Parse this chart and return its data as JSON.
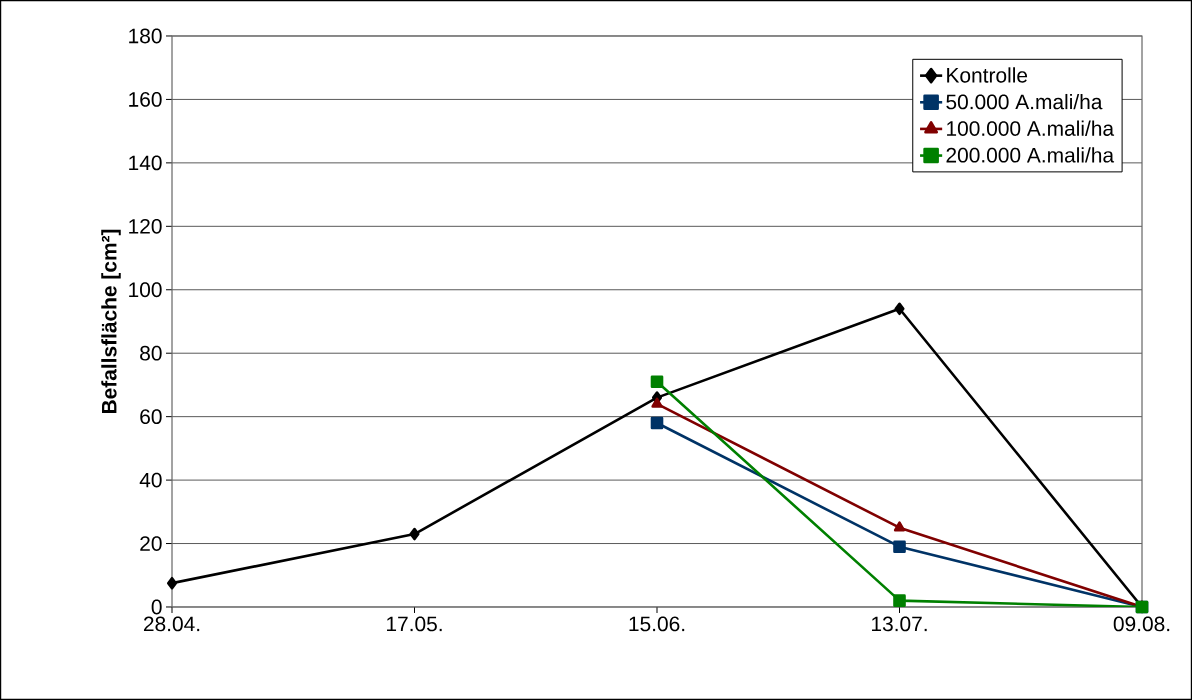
{
  "chart_data": {
    "type": "line",
    "ylabel": "Befallsfläche [cm²]",
    "categories": [
      "28.04.",
      "17.05.",
      "15.06.",
      "13.07.",
      "09.08."
    ],
    "series": [
      {
        "name": "Kontrolle",
        "color": "#000000",
        "marker": "diamond",
        "values": [
          7.5,
          23,
          66,
          94,
          0
        ]
      },
      {
        "name": "50.000 A.mali/ha",
        "color": "#003366",
        "marker": "square",
        "values": [
          null,
          null,
          58,
          19,
          0
        ]
      },
      {
        "name": "100.000 A.mali/ha",
        "color": "#800000",
        "marker": "triangle",
        "values": [
          null,
          null,
          64,
          25,
          0
        ]
      },
      {
        "name": "200.000 A.mali/ha",
        "color": "#008000",
        "marker": "square",
        "values": [
          null,
          null,
          71,
          2,
          0
        ]
      }
    ],
    "ylim": [
      0,
      180
    ],
    "yticks": [
      0,
      20,
      40,
      60,
      80,
      100,
      120,
      140,
      160,
      180
    ],
    "grid": "y",
    "legend": "top right",
    "line_style": "solid"
  }
}
